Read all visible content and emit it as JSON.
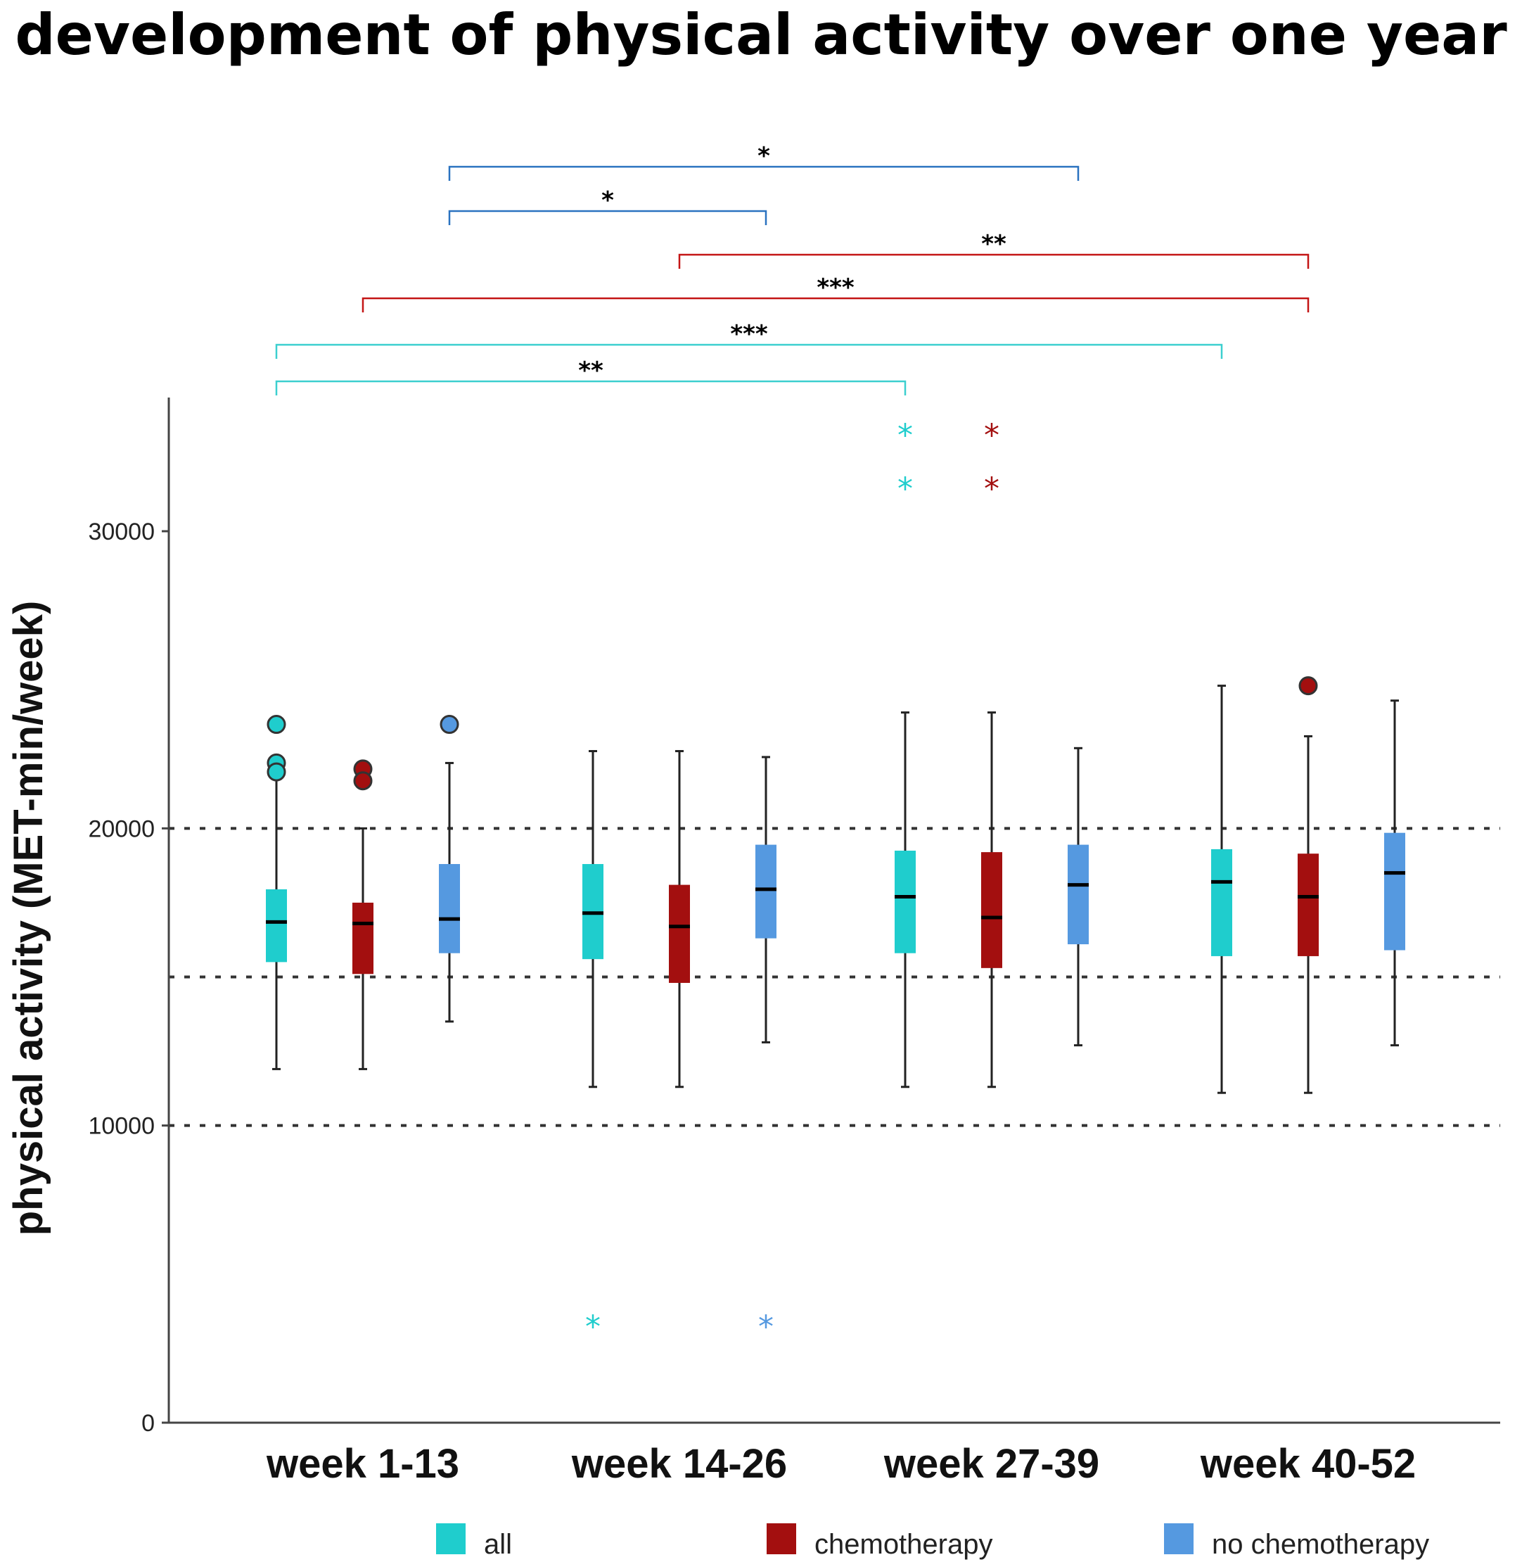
{
  "chart_data": {
    "type": "boxplot",
    "title": "development of physical activity over one year",
    "xlabel": "",
    "ylabel": "physical activity (MET-min/week)",
    "ylim": [
      0,
      34500
    ],
    "yticks": [
      0,
      10000,
      20000,
      30000
    ],
    "ytick_labels": [
      "0",
      "10000",
      "20000",
      "30000"
    ],
    "reference_lines": [
      10000,
      15000,
      20000
    ],
    "categories": [
      "week 1-13",
      "week 14-26",
      "week 27-39",
      "week 40-52"
    ],
    "series": [
      {
        "name": "all",
        "color": "#1fcdcd",
        "boxes": [
          {
            "low": 11900,
            "q1": 15500,
            "median": 16850,
            "q3": 17950,
            "high": 22000,
            "outliers": [
              22200,
              21900,
              23500
            ],
            "extremes": []
          },
          {
            "low": 11300,
            "q1": 15600,
            "median": 17150,
            "q3": 18800,
            "high": 22600,
            "outliers": [],
            "extremes": [
              3400
            ]
          },
          {
            "low": 11300,
            "q1": 15800,
            "median": 17700,
            "q3": 19250,
            "high": 23900,
            "outliers": [],
            "extremes": [
              31600,
              33400
            ]
          },
          {
            "low": 11100,
            "q1": 15700,
            "median": 18200,
            "q3": 19300,
            "high": 24800,
            "outliers": [],
            "extremes": []
          }
        ]
      },
      {
        "name": "chemotherapy",
        "color": "#a30f0f",
        "boxes": [
          {
            "low": 11900,
            "q1": 15100,
            "median": 16800,
            "q3": 17500,
            "high": 20000,
            "outliers": [
              22000,
              21600
            ],
            "extremes": []
          },
          {
            "low": 11300,
            "q1": 14800,
            "median": 16700,
            "q3": 18100,
            "high": 22600,
            "outliers": [],
            "extremes": []
          },
          {
            "low": 11300,
            "q1": 15300,
            "median": 17000,
            "q3": 19200,
            "high": 23900,
            "outliers": [],
            "extremes": [
              31600,
              33400
            ]
          },
          {
            "low": 11100,
            "q1": 15700,
            "median": 17700,
            "q3": 19150,
            "high": 23100,
            "outliers": [
              24800
            ],
            "extremes": []
          }
        ]
      },
      {
        "name": "no chemotherapy",
        "color": "#5599e0",
        "boxes": [
          {
            "low": 13500,
            "q1": 15800,
            "median": 16950,
            "q3": 18800,
            "high": 22200,
            "outliers": [
              23500
            ],
            "extremes": []
          },
          {
            "low": 12800,
            "q1": 16300,
            "median": 17950,
            "q3": 19450,
            "high": 22400,
            "outliers": [],
            "extremes": [
              3400
            ]
          },
          {
            "low": 12700,
            "q1": 16100,
            "median": 18100,
            "q3": 19450,
            "high": 22700,
            "outliers": [],
            "extremes": []
          },
          {
            "low": 12700,
            "q1": 15900,
            "median": 18500,
            "q3": 19850,
            "high": 24300,
            "outliers": [],
            "extremes": []
          }
        ]
      }
    ],
    "significance": [
      {
        "series": "no chemotherapy",
        "from": "week 1-13",
        "to": "week 27-39",
        "label": "*"
      },
      {
        "series": "no chemotherapy",
        "from": "week 1-13",
        "to": "week 14-26",
        "label": "*"
      },
      {
        "series": "chemotherapy",
        "from": "week 14-26",
        "to": "week 40-52",
        "label": "**"
      },
      {
        "series": "chemotherapy",
        "from": "week 1-13",
        "to": "week 40-52",
        "label": "***"
      },
      {
        "series": "all",
        "from": "week 1-13",
        "to": "week 40-52",
        "label": "***"
      },
      {
        "series": "all",
        "from": "week 1-13",
        "to": "week 27-39",
        "label": "**"
      }
    ],
    "legend": {
      "position": "bottom",
      "entries": [
        "all",
        "chemotherapy",
        "no chemotherapy"
      ]
    }
  }
}
